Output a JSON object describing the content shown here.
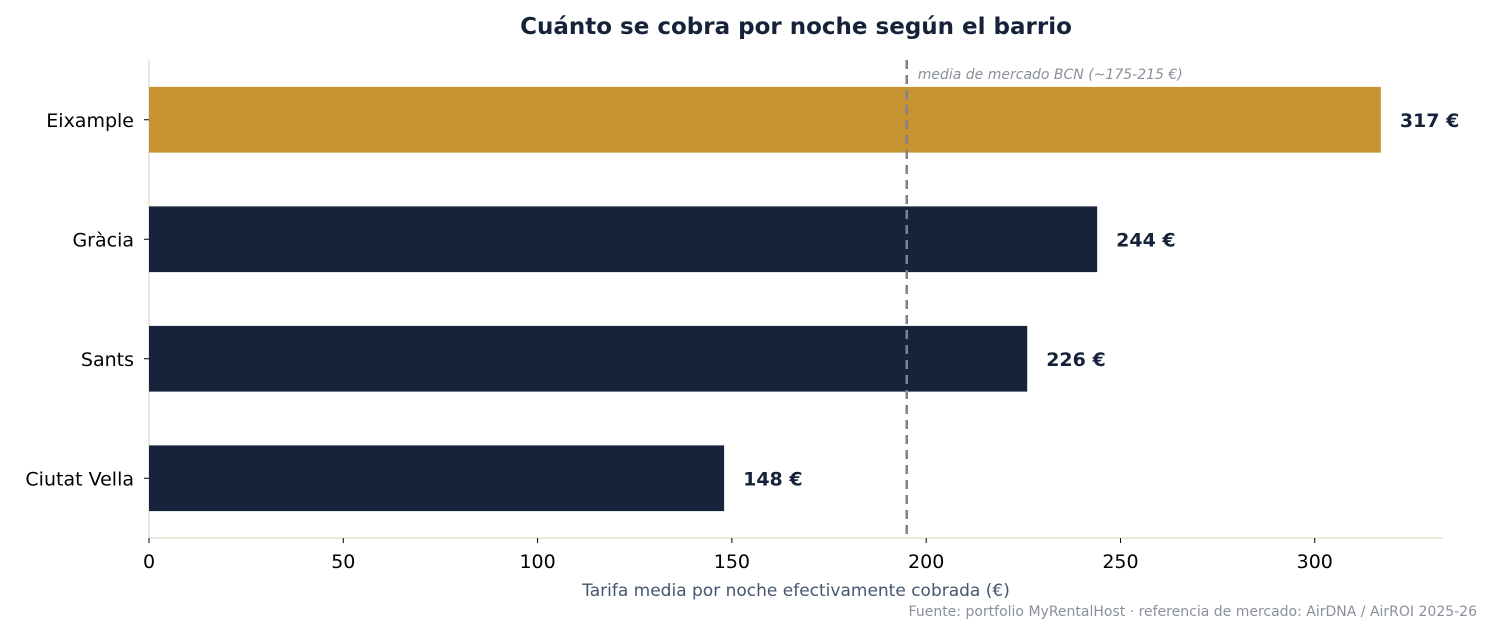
{
  "chart_data": {
    "type": "bar",
    "orientation": "horizontal",
    "title": "Cuánto se cobra por noche según el barrio",
    "xlabel": "Tarifa media por noche efectivamente cobrada (€)",
    "ylabel": "",
    "categories": [
      "Eixample",
      "Gràcia",
      "Sants",
      "Ciutat Vella"
    ],
    "values": [
      317,
      244,
      226,
      148
    ],
    "value_labels": [
      "317 €",
      "244 €",
      "226 €",
      "148 €"
    ],
    "xlim": [
      0,
      333
    ],
    "xticks": [
      0,
      50,
      100,
      150,
      200,
      250,
      300
    ],
    "highlight_category": "Eixample",
    "reference_line": {
      "value": 195,
      "label": "media de mercado BCN (~175-215 €)",
      "style": "dashed"
    },
    "grid": false,
    "source_note": "Fuente: portfolio MyRentalHost · referencia de mercado: AirDNA / AirROI 2025-26",
    "colors": {
      "highlight": "#c69232",
      "bar": "#16233b",
      "reference": "#7f8390",
      "axis": "#e6e0d4"
    }
  }
}
